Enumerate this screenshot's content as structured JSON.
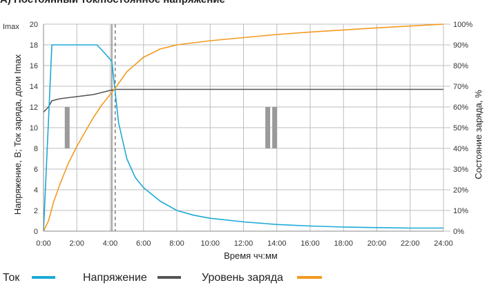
{
  "chart_data": {
    "type": "line",
    "title": "А) Постоянный ток/постоянное напряжение",
    "xlabel": "Время чч:мм",
    "ylabel_left": "Напряжение, В; Ток заряда, доли Imax",
    "ylabel_left_top": "Imax",
    "ylabel_right": "Состояние заряда, %",
    "xlim": [
      0,
      24
    ],
    "ylim_left": [
      0,
      20
    ],
    "ylim_right": [
      0,
      100
    ],
    "x_ticks": [
      "0:00",
      "2:00",
      "4:00",
      "6:00",
      "8:00",
      "10:00",
      "12:00",
      "14:00",
      "16:00",
      "18:00",
      "20:00",
      "22:00",
      "24:00"
    ],
    "y_left_ticks": [
      "0",
      "2",
      "4",
      "6",
      "8",
      "10",
      "12",
      "14",
      "16",
      "18",
      "20"
    ],
    "y_right_ticks": [
      "0%",
      "10%",
      "20%",
      "30%",
      "40%",
      "50%",
      "60%",
      "70%",
      "80%",
      "90%",
      "100%"
    ],
    "grid": true,
    "legend_position": "bottom",
    "vertical_markers": [
      {
        "x": 4.1,
        "style": "solid"
      },
      {
        "x": 4.3,
        "style": "dashed"
      }
    ],
    "series": [
      {
        "name": "Ток",
        "color": "#1aa9d6",
        "axis": "left",
        "x": [
          0,
          0.5,
          1,
          2,
          3,
          3.2,
          3.5,
          4,
          4.1,
          4.3,
          4.5,
          5,
          5.5,
          6,
          7,
          8,
          9,
          10,
          12,
          14,
          16,
          18,
          20,
          22,
          24
        ],
        "y": [
          0,
          18,
          18,
          18,
          18,
          18,
          17.5,
          16.6,
          16.4,
          13.5,
          10.5,
          7,
          5.2,
          4.2,
          2.9,
          2.0,
          1.55,
          1.25,
          0.9,
          0.65,
          0.5,
          0.4,
          0.35,
          0.3,
          0.3
        ]
      },
      {
        "name": "Напряжение",
        "color": "#555555",
        "axis": "left",
        "x": [
          0,
          0.3,
          0.5,
          1,
          2,
          3,
          4,
          4.3,
          6,
          8,
          12,
          16,
          20,
          24
        ],
        "y": [
          11.5,
          12.0,
          12.6,
          12.8,
          13.0,
          13.2,
          13.6,
          13.7,
          13.7,
          13.7,
          13.7,
          13.7,
          13.7,
          13.7
        ]
      },
      {
        "name": "Уровень заряда",
        "color": "#f39a1e",
        "axis": "right",
        "x": [
          0,
          0.3,
          0.6,
          1,
          1.5,
          2,
          2.5,
          3,
          3.5,
          4,
          4.3,
          5,
          6,
          7,
          8,
          10,
          12,
          14,
          16,
          18,
          20,
          22,
          24
        ],
        "y": [
          0,
          5,
          14,
          23,
          33,
          41,
          48,
          55,
          61,
          66,
          69,
          77,
          84,
          88,
          90,
          92,
          93.5,
          95,
          96.2,
          97.2,
          98.2,
          99.1,
          100
        ]
      }
    ],
    "break_markers": [
      {
        "x": 1.4,
        "bars": 1
      },
      {
        "x": 13.6,
        "bars": 2
      }
    ]
  }
}
